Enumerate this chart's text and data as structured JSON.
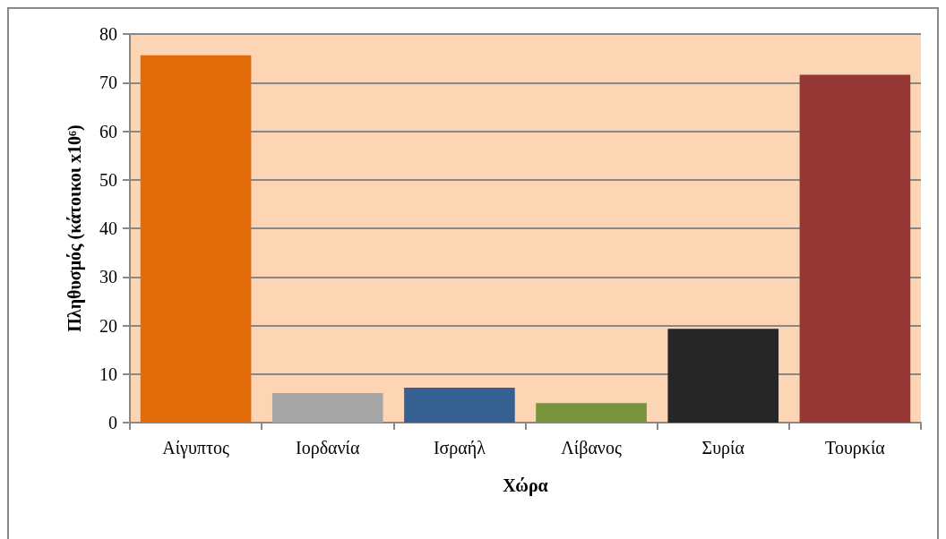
{
  "chart_data": {
    "type": "bar",
    "xlabel": "Χώρα",
    "ylabel": "Πληθυσμός (κάτοικοι x10⁶)",
    "categories": [
      "Αίγυπτος",
      "Ιορδανία",
      "Ισραήλ",
      "Λίβανος",
      "Συρία",
      "Τουρκία"
    ],
    "values": [
      75.6,
      6.1,
      7.2,
      4.0,
      19.3,
      71.6
    ],
    "colors": [
      "#e36c0a",
      "#a6a6a6",
      "#376092",
      "#77933c",
      "#262626",
      "#953735"
    ],
    "ylim": [
      0,
      80
    ],
    "yticks": [
      0,
      10,
      20,
      30,
      40,
      50,
      60,
      70,
      80
    ],
    "grid": "y"
  }
}
